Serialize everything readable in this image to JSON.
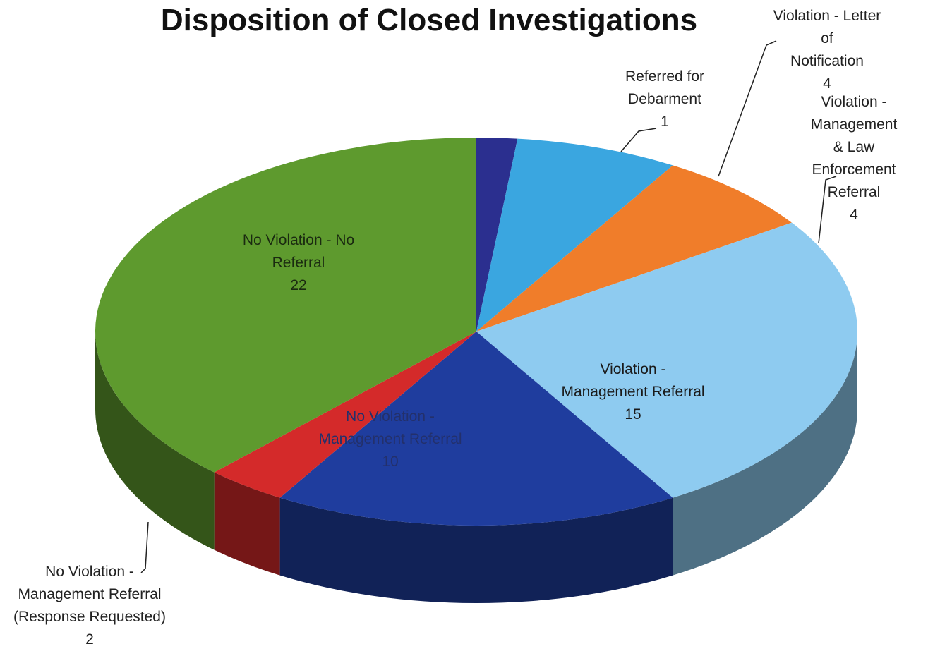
{
  "chart_data": {
    "type": "pie3d",
    "title": "Disposition of Closed Investigations",
    "categories": [
      "Referred for\nDebarment",
      "Violation - Letter of\nNotification",
      "Violation -\nManagement & Law\nEnforcement Referral",
      "Violation -\nManagement Referral",
      "No Violation -\nManagement Referral",
      "No Violation -\nManagement Referral\n(Response Requested)",
      "No Violation - No\nReferral"
    ],
    "values": [
      1,
      4,
      4,
      15,
      10,
      2,
      22
    ],
    "colors": [
      "#2b2f8f",
      "#3aa6e0",
      "#f07d2a",
      "#8ecbf0",
      "#1f3d9e",
      "#d42a2a",
      "#5e9a2e"
    ]
  }
}
